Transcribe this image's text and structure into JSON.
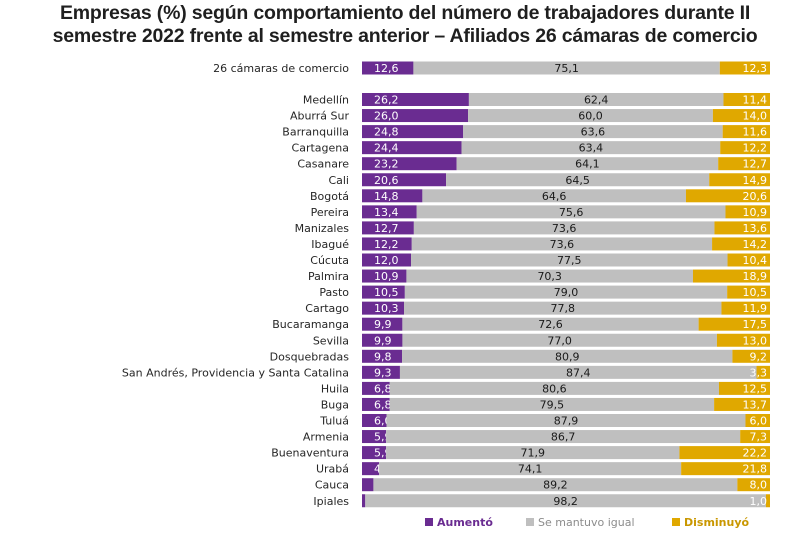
{
  "title_line1": "Empresas (%) según comportamiento del número de trabajadores durante II",
  "title_line2": "semestre 2022 frente al semestre anterior – Afiliados 26 cámaras de comercio",
  "chart_data": {
    "type": "bar",
    "orientation": "horizontal",
    "stacked": true,
    "percent_stacked": true,
    "title": "Empresas (%) según comportamiento del número de trabajadores durante II semestre 2022 frente al semestre anterior – Afiliados 26 cámaras de comercio",
    "categories": [
      "26 cámaras de comercio",
      "Medellín",
      "Aburrá Sur",
      "Barranquilla",
      "Cartagena",
      "Casanare",
      "Cali",
      "Bogotá",
      "Pereira",
      "Manizales",
      "Ibagué",
      "Cúcuta",
      "Palmira",
      "Pasto",
      "Cartago",
      "Bucaramanga",
      "Sevilla",
      "Dosquebradas",
      "San Andrés, Providencia y Santa Catalina",
      "Huila",
      "Buga",
      "Tuluá",
      "Armenia",
      "Buenaventura",
      "Urabá",
      "Cauca",
      "Ipiales"
    ],
    "series": [
      {
        "name": "Aumentó",
        "color": "#6a2c91",
        "values": [
          12.6,
          26.2,
          26.0,
          24.8,
          24.4,
          23.2,
          20.6,
          14.8,
          13.4,
          12.7,
          12.2,
          12.0,
          10.9,
          10.5,
          10.3,
          9.9,
          9.9,
          9.8,
          9.3,
          6.8,
          6.8,
          6.0,
          5.9,
          5.9,
          4.2,
          2.8,
          0.8
        ]
      },
      {
        "name": "Se mantuvo igual",
        "color": "#bfbfbf",
        "values": [
          75.1,
          62.4,
          60.0,
          63.6,
          63.4,
          64.1,
          64.5,
          64.6,
          75.6,
          73.6,
          73.6,
          77.5,
          70.3,
          79.0,
          77.8,
          72.6,
          77.0,
          80.9,
          87.4,
          80.6,
          79.5,
          87.9,
          86.7,
          71.9,
          74.1,
          89.2,
          98.2
        ]
      },
      {
        "name": "Disminuyó",
        "color": "#e0a800",
        "values": [
          12.3,
          11.4,
          14.0,
          11.6,
          12.2,
          12.7,
          14.9,
          20.6,
          10.9,
          13.6,
          14.2,
          10.4,
          18.9,
          10.5,
          11.9,
          17.5,
          13.0,
          9.2,
          3.3,
          12.5,
          13.7,
          6.0,
          7.3,
          22.2,
          21.8,
          8.0,
          1.0
        ]
      }
    ],
    "legend_position": "bottom",
    "grid": false
  }
}
